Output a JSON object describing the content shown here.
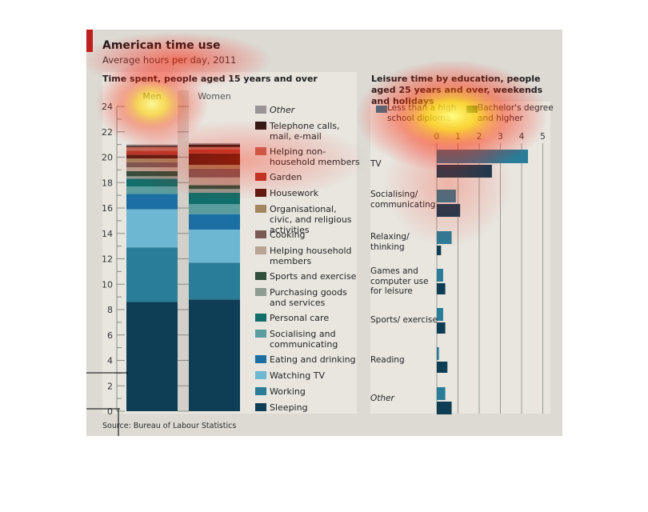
{
  "header": {
    "title": "American time use",
    "subtitle": "Average hours per day, 2011",
    "source": "Source: Bureau of Labour Statistics"
  },
  "colors": {
    "red_accent": "#c01f1f",
    "card_bg": "#dcdad3",
    "panel_bg": "#e8e6df"
  },
  "chart_data": [
    {
      "type": "bar",
      "stacked": true,
      "title": "Time spent, people aged 15 years and over",
      "categories": [
        "Men",
        "Women"
      ],
      "ylim": [
        0,
        24
      ],
      "yticks": [
        "0",
        "2",
        "4",
        "6",
        "8",
        "10",
        "12",
        "14",
        "16",
        "18",
        "20",
        "22",
        "24"
      ],
      "legend_position": "right",
      "series": [
        {
          "name": "Sleeping",
          "color": "#0e3e55",
          "values": [
            8.6,
            8.8
          ]
        },
        {
          "name": "Working",
          "color": "#2a7d98",
          "values": [
            4.3,
            2.9
          ]
        },
        {
          "name": "Watching TV",
          "color": "#6eb7d2",
          "values": [
            3.0,
            2.6
          ]
        },
        {
          "name": "Eating and drinking",
          "color": "#1b6fa3",
          "values": [
            1.2,
            1.2
          ]
        },
        {
          "name": "Socialising and communicating",
          "color": "#5a9d9e",
          "values": [
            0.6,
            0.8
          ]
        },
        {
          "name": "Personal care",
          "color": "#126e6a",
          "values": [
            0.6,
            0.9
          ]
        },
        {
          "name": "Purchasing goods and services",
          "color": "#8f9c91",
          "values": [
            0.2,
            0.3
          ]
        },
        {
          "name": "Sports and exercise",
          "color": "#304f3c",
          "values": [
            0.4,
            0.3
          ]
        },
        {
          "name": "Helping household members",
          "color": "#b9a394",
          "values": [
            0.3,
            0.6
          ]
        },
        {
          "name": "Cooking",
          "color": "#7a5a55",
          "values": [
            0.4,
            0.7
          ]
        },
        {
          "name": "Organisational, civic, and religious activities",
          "color": "#a38560",
          "values": [
            0.3,
            0.3
          ]
        },
        {
          "name": "Housework",
          "color": "#5a1c12",
          "values": [
            0.3,
            0.9
          ]
        },
        {
          "name": "Garden",
          "color": "#b6392b",
          "values": [
            0.3,
            0.3
          ]
        },
        {
          "name": "Helping non-household members",
          "color": "#c06a5a",
          "values": [
            0.3,
            0.2
          ]
        },
        {
          "name": "Telephone calls, mail, e-mail",
          "color": "#2e1a16",
          "values": [
            0.1,
            0.2
          ]
        },
        {
          "name": "Other",
          "color": "#9b9497",
          "values": [
            0.1,
            0.1
          ]
        }
      ]
    },
    {
      "type": "bar",
      "orientation": "horizontal",
      "title": "Leisure time by education, people aged 25 years and over, weekends and holidays",
      "categories": [
        "TV",
        "Socialising/ communicating",
        "Relaxing/ thinking",
        "Games and computer use for leisure",
        "Sports/ exercise",
        "Reading",
        "Other"
      ],
      "xlim": [
        0,
        5
      ],
      "xticks": [
        "0",
        "1",
        "2",
        "3",
        "4",
        "5"
      ],
      "legend_position": "top",
      "series": [
        {
          "name": "Less than a high school diploma",
          "color": "#2a7d98",
          "values": [
            4.3,
            0.9,
            0.7,
            0.3,
            0.3,
            0.1,
            0.4
          ]
        },
        {
          "name": "Bachelor's degree and higher",
          "color": "#0e3e55",
          "values": [
            2.6,
            1.1,
            0.2,
            0.4,
            0.4,
            0.5,
            0.7
          ]
        }
      ]
    }
  ]
}
